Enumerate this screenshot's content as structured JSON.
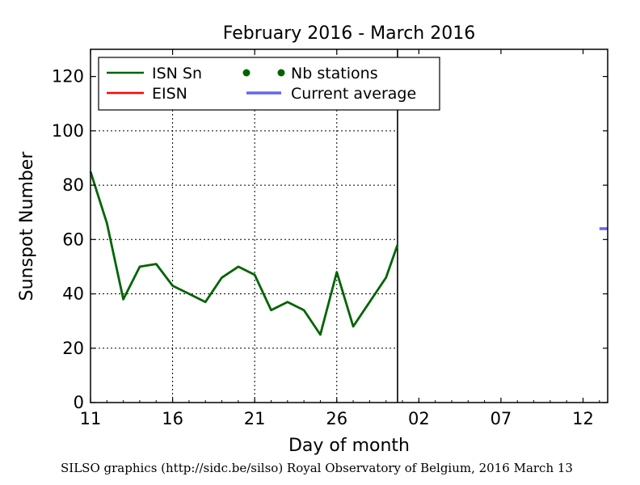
{
  "chart_data": {
    "type": "line",
    "title": "February 2016 - March 2016",
    "xlabel": "Day of month",
    "ylabel": "Sunspot Number",
    "ylim": [
      0,
      130
    ],
    "yticks": [
      0,
      20,
      40,
      60,
      80,
      100,
      120
    ],
    "x_ticks": [
      {
        "day": 0,
        "label": "11"
      },
      {
        "day": 5,
        "label": "16"
      },
      {
        "day": 10,
        "label": "21"
      },
      {
        "day": 15,
        "label": "26"
      },
      {
        "day": 20,
        "label": "02"
      },
      {
        "day": 25,
        "label": "07"
      },
      {
        "day": 30,
        "label": "12"
      }
    ],
    "xlim": [
      0,
      31.5
    ],
    "grid": true,
    "month_divider_day": 18.7,
    "legend": {
      "placement": "top-left",
      "entries": [
        {
          "label": "ISN Sn",
          "kind": "line",
          "color": "#006400"
        },
        {
          "label": "EISN",
          "kind": "line",
          "color": "#ff0000"
        },
        {
          "label": "Nb stations",
          "kind": "dots",
          "color": "#006400"
        },
        {
          "label": "Current average",
          "kind": "line",
          "color": "#6666ee"
        }
      ]
    },
    "series": [
      {
        "name": "ISN Sn",
        "color": "#006400",
        "x": [
          0,
          1,
          2,
          3,
          4,
          5,
          6,
          7,
          8,
          9,
          10,
          11,
          12,
          13,
          14,
          15,
          16,
          17,
          18,
          18.7
        ],
        "values": [
          85,
          66,
          38,
          50,
          51,
          43,
          40,
          37,
          46,
          50,
          47,
          34,
          37,
          34,
          25,
          48,
          28,
          37,
          46,
          58
        ]
      },
      {
        "name": "Current average",
        "color": "#6666ee",
        "x": [
          31,
          31.5
        ],
        "values": [
          64,
          64
        ]
      }
    ]
  },
  "footer": "SILSO graphics (http://sidc.be/silso) Royal Observatory of Belgium, 2016 March 13"
}
